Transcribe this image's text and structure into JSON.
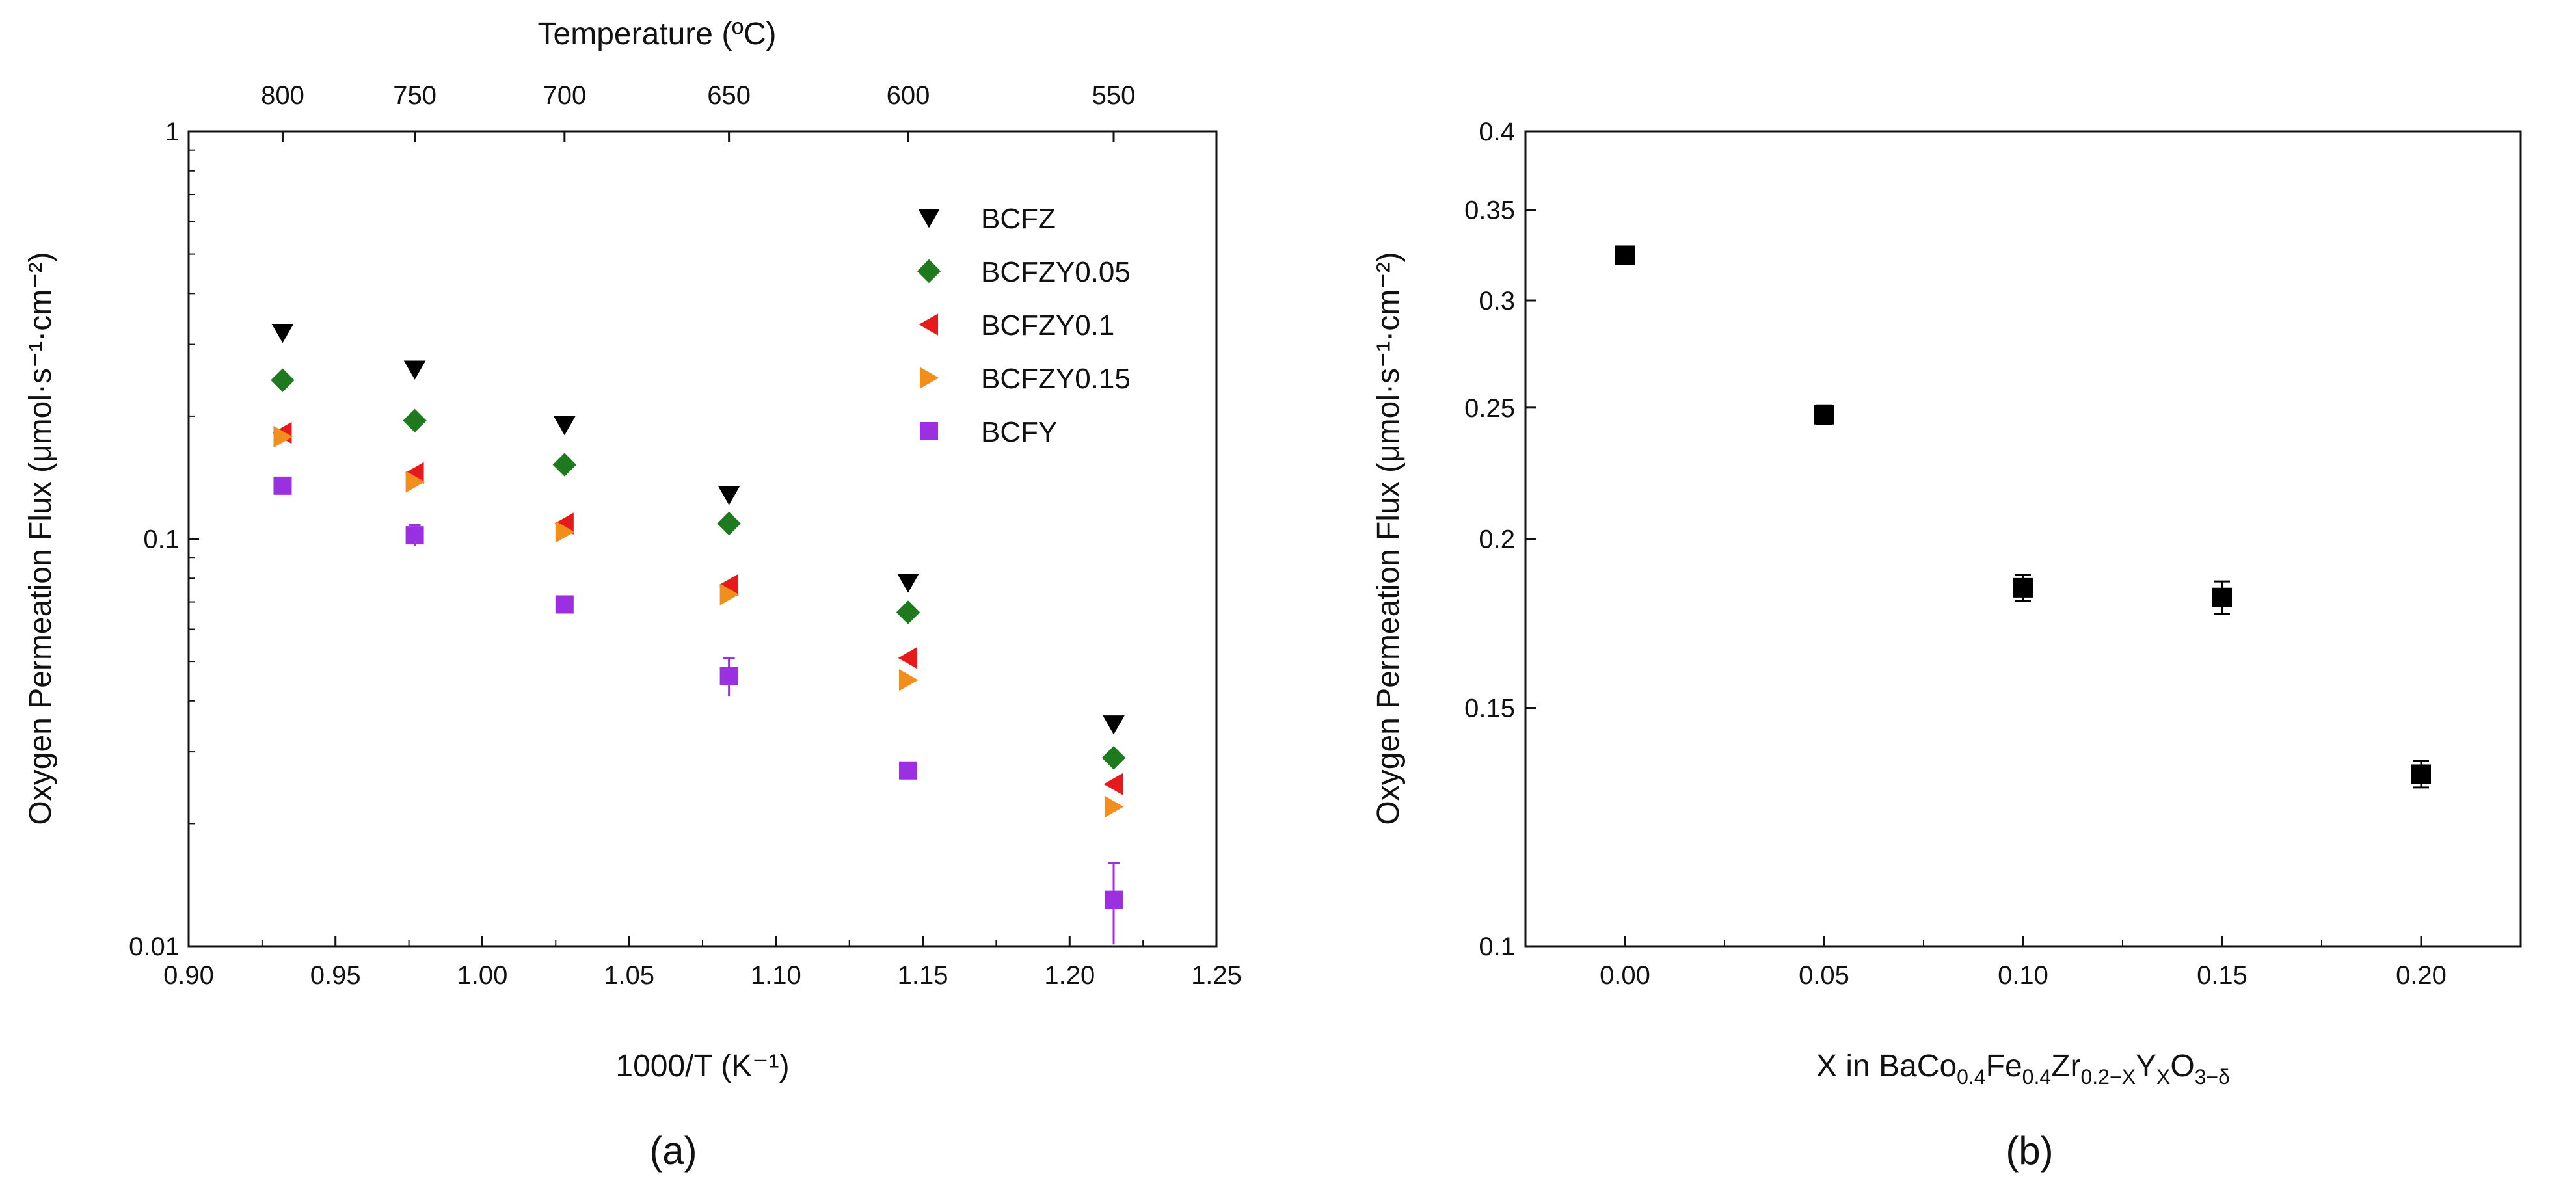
{
  "chart_data": [
    {
      "id": "a",
      "type": "scatter",
      "panel_label": "(a)",
      "xlabel": "1000/T (K⁻¹)",
      "ylabel": "Oxygen Permeation Flux (μmol·s⁻¹·cm⁻²)",
      "top_axis_label": "Temperature (ºC)",
      "xlim": [
        0.9,
        1.25
      ],
      "ylim": [
        0.01,
        1
      ],
      "yscale": "log",
      "x_ticks": [
        "0.90",
        "0.95",
        "1.00",
        "1.05",
        "1.10",
        "1.15",
        "1.20",
        "1.25"
      ],
      "y_ticks": [
        "0.01",
        "0.1",
        "1"
      ],
      "top_ticks": [
        {
          "label": "800",
          "x": 0.932
        },
        {
          "label": "750",
          "x": 0.977
        },
        {
          "label": "700",
          "x": 1.028
        },
        {
          "label": "650",
          "x": 1.084
        },
        {
          "label": "600",
          "x": 1.145
        },
        {
          "label": "550",
          "x": 1.215
        }
      ],
      "legend_position": "top-right",
      "series": [
        {
          "name": "BCFZ",
          "color": "#000000",
          "marker": "triangle-down",
          "points": [
            [
              0.932,
              0.32
            ],
            [
              0.977,
              0.26
            ],
            [
              1.028,
              0.19
            ],
            [
              1.084,
              0.128
            ],
            [
              1.145,
              0.078
            ],
            [
              1.215,
              0.035
            ]
          ]
        },
        {
          "name": "BCFZY0.05",
          "color": "#1f7a1f",
          "marker": "diamond",
          "points": [
            [
              0.932,
              0.245
            ],
            [
              0.977,
              0.195
            ],
            [
              1.028,
              0.152
            ],
            [
              1.084,
              0.109
            ],
            [
              1.145,
              0.066
            ],
            [
              1.215,
              0.029
            ]
          ]
        },
        {
          "name": "BCFZY0.1",
          "color": "#e41a1c",
          "marker": "triangle-left",
          "points": [
            [
              0.932,
              0.182
            ],
            [
              0.977,
              0.145
            ],
            [
              1.028,
              0.109
            ],
            [
              1.084,
              0.077
            ],
            [
              1.145,
              0.051
            ],
            [
              1.215,
              0.025
            ]
          ]
        },
        {
          "name": "BCFZY0.15",
          "color": "#f28e1c",
          "marker": "triangle-right",
          "points": [
            [
              0.932,
              0.178
            ],
            [
              0.977,
              0.138
            ],
            [
              1.028,
              0.104
            ],
            [
              1.084,
              0.073
            ],
            [
              1.145,
              0.045
            ],
            [
              1.215,
              0.022
            ]
          ]
        },
        {
          "name": "BCFY",
          "color": "#9b30e0",
          "marker": "square",
          "points": [
            [
              0.932,
              0.135
            ],
            [
              0.977,
              0.102
            ],
            [
              1.028,
              0.069
            ],
            [
              1.084,
              0.046
            ],
            [
              1.145,
              0.027
            ],
            [
              1.215,
              0.013
            ]
          ],
          "errors": [
            0,
            0.006,
            0,
            0.005,
            0,
            0.003
          ]
        }
      ]
    },
    {
      "id": "b",
      "type": "scatter",
      "panel_label": "(b)",
      "xlabel_parts": [
        "X in BaCo",
        "0.4",
        "Fe",
        "0.4",
        "Zr",
        "0.2−X",
        "Y",
        "X",
        "O",
        "3−δ"
      ],
      "ylabel": "Oxygen Permeation Flux (μmol·s⁻¹·cm⁻²)",
      "xlim": [
        -0.025,
        0.225
      ],
      "ylim": [
        0.1,
        0.4
      ],
      "yscale": "log",
      "x_ticks": [
        "0.00",
        "0.05",
        "0.10",
        "0.15",
        "0.20"
      ],
      "y_ticks": [
        "0.1",
        "0.15",
        "0.2",
        "0.25",
        "0.3",
        "0.35",
        "0.4"
      ],
      "series": [
        {
          "name": "flux",
          "color": "#000000",
          "marker": "square",
          "x": [
            0.0,
            0.05,
            0.1,
            0.15,
            0.2
          ],
          "values": [
            0.324,
            0.247,
            0.184,
            0.181,
            0.134
          ],
          "errors": [
            0.004,
            0.004,
            0.004,
            0.005,
            0.003
          ]
        }
      ]
    }
  ]
}
